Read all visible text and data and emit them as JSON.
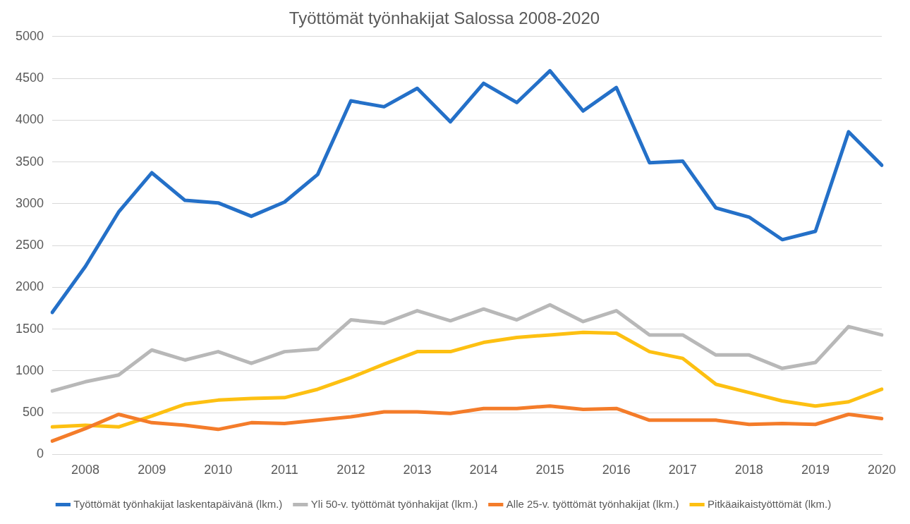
{
  "chart_data": {
    "type": "line",
    "title": "Työttömät työnhakijat Salossa 2008-2020",
    "categories": [
      null,
      "2008",
      null,
      "2009",
      null,
      "2010",
      null,
      "2011",
      null,
      "2012",
      null,
      "2013",
      null,
      "2014",
      null,
      "2015",
      null,
      "2016",
      null,
      "2017",
      null,
      "2018",
      null,
      "2019",
      null,
      "2020"
    ],
    "series": [
      {
        "name": "Työttömät työnhakijat laskentapäivänä (lkm.)",
        "color": "#2470c8",
        "values": [
          1700,
          2250,
          2900,
          3370,
          3040,
          3010,
          2850,
          3020,
          3350,
          4230,
          4160,
          4380,
          3980,
          4440,
          4210,
          4590,
          4110,
          4390,
          3490,
          3510,
          2950,
          2840,
          2570,
          2670,
          3860,
          3460
        ]
      },
      {
        "name": "Yli 50-v. työttömät työnhakijat (lkm.)",
        "color": "#b8b8b8",
        "values": [
          760,
          870,
          950,
          1250,
          1130,
          1230,
          1090,
          1230,
          1260,
          1610,
          1570,
          1720,
          1600,
          1740,
          1610,
          1790,
          1590,
          1720,
          1430,
          1430,
          1190,
          1190,
          1030,
          1100,
          1530,
          1430
        ]
      },
      {
        "name": "Alle 25-v. työttömät työnhakijat (lkm.)",
        "color": "#f47c2a",
        "values": [
          160,
          310,
          480,
          380,
          350,
          300,
          380,
          370,
          410,
          450,
          510,
          510,
          490,
          550,
          550,
          580,
          540,
          550,
          410,
          410,
          410,
          360,
          370,
          360,
          480,
          430
        ]
      },
      {
        "name": "Pitkäaikaistyöttömät (lkm.)",
        "color": "#fdc012",
        "values": [
          330,
          350,
          330,
          460,
          600,
          650,
          670,
          680,
          780,
          920,
          1080,
          1230,
          1230,
          1340,
          1400,
          1430,
          1460,
          1450,
          1230,
          1150,
          840,
          740,
          640,
          580,
          630,
          780
        ]
      }
    ],
    "ylim": [
      0,
      5000
    ],
    "yticks": [
      0,
      500,
      1000,
      1500,
      2000,
      2500,
      3000,
      3500,
      4000,
      4500,
      5000
    ],
    "grid": "y",
    "legend": "bottom",
    "marker": "none",
    "line_style": "solid"
  }
}
